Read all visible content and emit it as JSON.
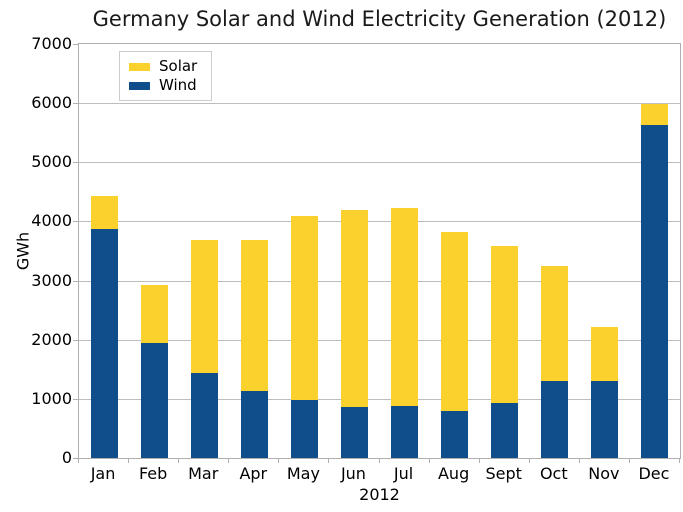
{
  "title": "Germany Solar and Wind Electricity Generation (2012)",
  "colors": {
    "solar": "#fbd12e",
    "wind": "#104e8b",
    "grid": "#bdbdbd",
    "spine": "#b0b0b0",
    "background": "#ffffff",
    "text": "#000000"
  },
  "chart_data": {
    "type": "bar",
    "stacked": true,
    "title": "Germany Solar and Wind Electricity Generation (2012)",
    "xlabel": "2012",
    "ylabel": "GWh",
    "categories": [
      "Jan",
      "Feb",
      "Mar",
      "Apr",
      "May",
      "Jun",
      "Jul",
      "Aug",
      "Sept",
      "Oct",
      "Nov",
      "Dec"
    ],
    "series": [
      {
        "name": "Solar",
        "color": "#fbd12e",
        "values": [
          550,
          990,
          2240,
          2560,
          3120,
          3340,
          3350,
          3020,
          2660,
          1940,
          900,
          360
        ]
      },
      {
        "name": "Wind",
        "color": "#104e8b",
        "values": [
          3880,
          1940,
          1440,
          1130,
          980,
          860,
          880,
          800,
          930,
          1310,
          1310,
          5630
        ]
      }
    ],
    "stack_order_bottom_to_top": [
      "Wind",
      "Solar"
    ],
    "totals": [
      4430,
      2930,
      3680,
      3690,
      4100,
      4200,
      4230,
      3820,
      3590,
      3250,
      2210,
      5990
    ],
    "ylim": [
      0,
      7000
    ],
    "yticks": [
      0,
      1000,
      2000,
      3000,
      4000,
      5000,
      6000,
      7000
    ],
    "grid": true,
    "legend_position": "upper-left",
    "units": "GWh"
  }
}
